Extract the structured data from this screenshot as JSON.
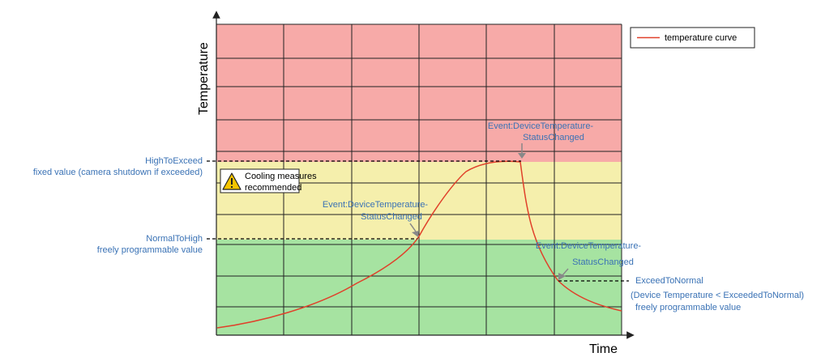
{
  "axes": {
    "y_title": "Temperature",
    "x_title": "Time"
  },
  "legend": {
    "label": "temperature curve"
  },
  "zones": {
    "high_color": "#f7aaa8",
    "mid_color": "#f5efac",
    "low_color": "#a6e3a1"
  },
  "thresholds": {
    "high_to_exceed": {
      "name": "HighToExceed",
      "description": "fixed value (camera shutdown if exceeded)"
    },
    "normal_to_high": {
      "name": "NormalToHigh",
      "description": "freely programmable value"
    },
    "exceed_to_normal": {
      "name": "ExceedToNormal",
      "description": "(Device Temperature < ExceededToNormal)",
      "extra": "freely programmable value"
    }
  },
  "events": [
    {
      "line1": "Event:DeviceTemperature-",
      "line2": "StatusChanged"
    },
    {
      "line1": "Event:DeviceTemperature-",
      "line2": "StatusChanged"
    },
    {
      "line1": "Event:DeviceTemperature-",
      "line2": "StatusChanged"
    }
  ],
  "warning": {
    "line1": "Cooling measures",
    "line2": "recommended",
    "icon": "warning-icon"
  },
  "colors": {
    "curve": "#e0402a",
    "label": "#3a72b5",
    "grid": "#222222"
  }
}
